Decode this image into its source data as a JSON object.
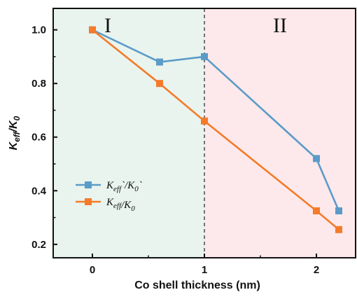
{
  "chart_data": {
    "type": "line",
    "xlabel": "Co shell thickness (nm)",
    "ylabel": {
      "main": "K",
      "sub": "eff",
      "slash": "/K",
      "sub2": "0"
    },
    "xlim": [
      -0.35,
      2.35
    ],
    "ylim": [
      0.15,
      1.08
    ],
    "xticks": [
      0,
      1,
      2
    ],
    "yticks": [
      0.2,
      0.4,
      0.6,
      0.8,
      1.0
    ],
    "ytick_labels": [
      "0.2",
      "0.4",
      "0.6",
      "0.8",
      "1.0"
    ],
    "regions": [
      {
        "label": "I",
        "from": -0.35,
        "to": 1.0,
        "color": "#e9f4ee"
      },
      {
        "label": "II",
        "from": 1.0,
        "to": 2.35,
        "color": "#fde9eb"
      }
    ],
    "divider_x": 1.0,
    "grid": false,
    "legend_position": "lower-left",
    "series": [
      {
        "legend": {
          "main": "K",
          "sub": "eff",
          "mark1": "`",
          "slash": "/K",
          "sub2": "0",
          "mark2": "`"
        },
        "color": "#5b9bc8",
        "marker": "square",
        "x": [
          0,
          0.6,
          1.0,
          2.0,
          2.2
        ],
        "y": [
          1.0,
          0.88,
          0.9,
          0.52,
          0.325
        ]
      },
      {
        "legend": {
          "main": "K",
          "sub": "eff",
          "mark1": "",
          "slash": "/K",
          "sub2": "0",
          "mark2": ""
        },
        "color": "#f47b2a",
        "marker": "square",
        "x": [
          0,
          0.6,
          1.0,
          2.0,
          2.2
        ],
        "y": [
          1.0,
          0.8,
          0.66,
          0.325,
          0.255
        ]
      }
    ]
  }
}
